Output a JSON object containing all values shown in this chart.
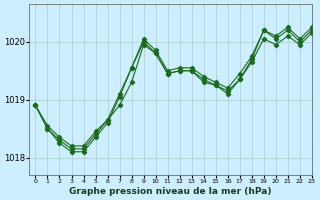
{
  "title": "Graphe pression niveau de la mer (hPa)",
  "bg_color": "#cceeff",
  "grid_color": "#aacccc",
  "line_color": "#1a6b1a",
  "ylim": [
    1017.7,
    1020.65
  ],
  "yticks": [
    1018,
    1019,
    1020
  ],
  "xlim": [
    -0.5,
    23
  ],
  "xticks": [
    0,
    1,
    2,
    3,
    4,
    5,
    6,
    7,
    8,
    9,
    10,
    11,
    12,
    13,
    14,
    15,
    16,
    17,
    18,
    19,
    20,
    21,
    22,
    23
  ],
  "series1": [
    1018.9,
    1018.55,
    1018.35,
    1018.2,
    1018.2,
    1018.45,
    1018.65,
    1018.9,
    1019.3,
    1019.95,
    1019.8,
    1019.45,
    1019.5,
    1019.5,
    1019.3,
    1019.25,
    1019.15,
    1019.35,
    1019.65,
    1020.05,
    1019.95,
    1020.1,
    1019.95,
    1020.15
  ],
  "series2": [
    1018.9,
    1018.5,
    1018.3,
    1018.15,
    1018.15,
    1018.4,
    1018.65,
    1019.1,
    1019.55,
    1020.05,
    1019.85,
    1019.5,
    1019.55,
    1019.55,
    1019.4,
    1019.3,
    1019.2,
    1019.45,
    1019.75,
    1020.2,
    1020.1,
    1020.25,
    1020.05,
    1020.25
  ],
  "series3": [
    1018.9,
    1018.5,
    1018.25,
    1018.1,
    1018.1,
    1018.35,
    1018.6,
    1019.05,
    1019.55,
    1020.0,
    1019.8,
    1019.45,
    1019.5,
    1019.5,
    1019.35,
    1019.25,
    1019.1,
    1019.35,
    1019.7,
    1020.2,
    1020.05,
    1020.2,
    1020.0,
    1020.2
  ]
}
